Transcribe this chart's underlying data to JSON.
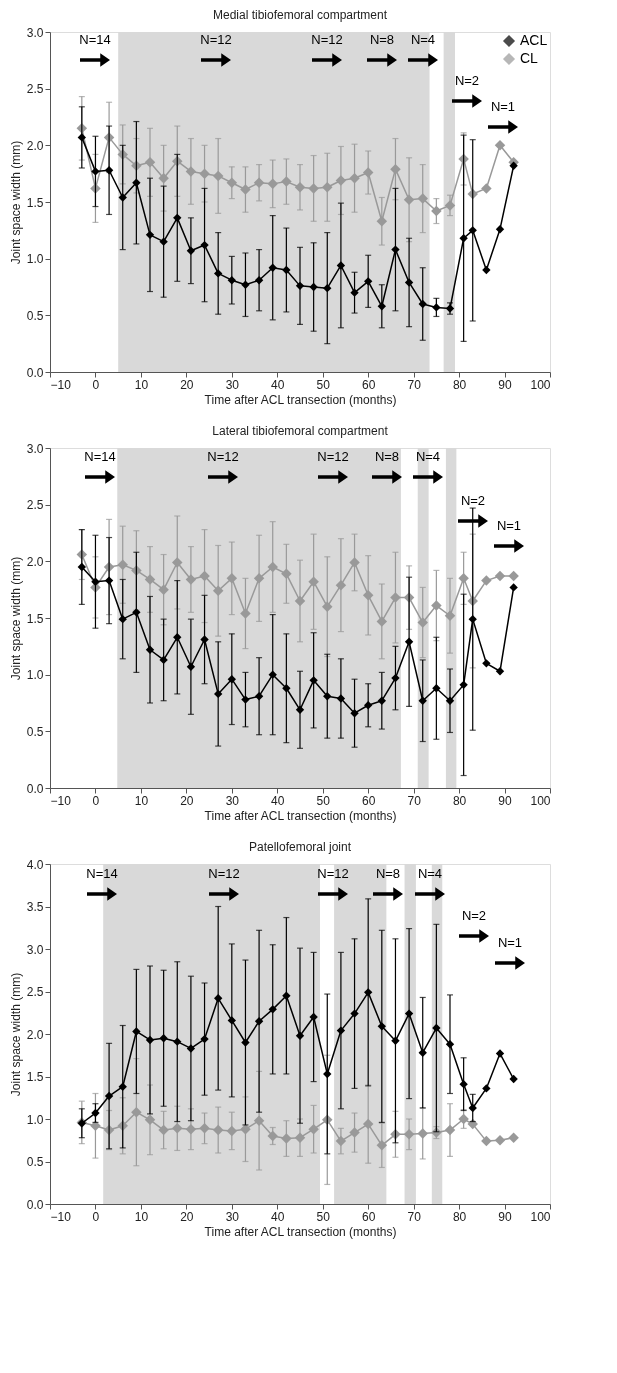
{
  "chart_data": [
    {
      "type": "line",
      "title": "Medial tibiofemoral compartment",
      "xlabel": "Time after ACL transection (months)",
      "ylabel": "Joint space width (mm)",
      "x": [
        -3,
        0,
        3,
        6,
        9,
        12,
        15,
        18,
        21,
        24,
        27,
        30,
        33,
        36,
        39,
        42,
        45,
        48,
        51,
        54,
        57,
        60,
        63,
        66,
        69,
        72,
        75,
        78,
        81,
        83,
        86,
        89,
        92
      ],
      "series": [
        {
          "name": "ACL",
          "color": "#000000",
          "values": [
            2.07,
            1.77,
            1.78,
            1.54,
            1.67,
            1.21,
            1.15,
            1.36,
            1.07,
            1.12,
            0.87,
            0.81,
            0.77,
            0.81,
            0.92,
            0.9,
            0.76,
            0.75,
            0.74,
            0.94,
            0.7,
            0.8,
            0.58,
            1.08,
            0.79,
            0.6,
            0.57,
            0.56,
            1.18,
            1.25,
            0.9,
            1.26,
            1.82
          ],
          "errors": [
            0.27,
            0.31,
            0.39,
            0.46,
            0.54,
            0.5,
            0.49,
            0.56,
            0.29,
            0.5,
            0.36,
            0.21,
            0.28,
            0.27,
            0.46,
            0.37,
            0.34,
            0.39,
            0.49,
            0.55,
            0.18,
            0.23,
            0.19,
            0.54,
            0.39,
            0.32,
            0.08,
            0.05,
            0.91,
            0.8,
            null,
            null,
            null
          ]
        },
        {
          "name": "CL",
          "color": "#999999",
          "values": [
            2.15,
            1.62,
            2.07,
            1.92,
            1.82,
            1.85,
            1.71,
            1.86,
            1.77,
            1.75,
            1.73,
            1.67,
            1.61,
            1.67,
            1.66,
            1.68,
            1.63,
            1.62,
            1.63,
            1.69,
            1.71,
            1.76,
            1.33,
            1.79,
            1.52,
            1.53,
            1.42,
            1.47,
            1.88,
            1.57,
            1.62,
            2.0,
            1.85
          ],
          "errors": [
            0.28,
            0.3,
            0.31,
            0.26,
            0.24,
            0.3,
            0.29,
            0.31,
            0.29,
            0.25,
            0.33,
            0.14,
            0.2,
            0.16,
            0.21,
            0.2,
            0.2,
            0.29,
            0.3,
            0.3,
            0.3,
            0.19,
            0.21,
            0.27,
            0.37,
            0.3,
            0.11,
            0.09,
            0.23,
            null,
            null,
            null,
            null
          ]
        }
      ],
      "xlim": [
        -10,
        100
      ],
      "xticks": [
        -10,
        0,
        10,
        20,
        30,
        40,
        50,
        60,
        70,
        80,
        90,
        100
      ],
      "ylim": [
        0,
        3
      ],
      "yticks": [
        {
          "value": 0,
          "label": "0.0"
        },
        {
          "value": 0.5,
          "label": "0.5"
        },
        {
          "value": 1,
          "label": "1.0"
        },
        {
          "value": 1.5,
          "label": "1.5"
        },
        {
          "value": 2,
          "label": "2.0"
        },
        {
          "value": 2.5,
          "label": "2.5"
        },
        {
          "value": 3,
          "label": "3.0"
        }
      ],
      "bands": [
        {
          "axis": "x",
          "from": 5,
          "to": 73.5,
          "color": "#d9d9d9"
        },
        {
          "axis": "x",
          "from": 76.6,
          "to": 79.1,
          "color": "#d9d9d9"
        }
      ],
      "annotations": [
        "N=14",
        "N=12",
        "N=12",
        "N=8",
        "N=4",
        "N=2",
        "N=1"
      ],
      "legend": "top right",
      "marker": "diamond",
      "line_style": "solid"
    },
    {
      "type": "line",
      "title": "Lateral tibiofemoral compartment",
      "xlabel": "Time after ACL transection (months)",
      "ylabel": "Joint space width (mm)",
      "x": [
        -3,
        0,
        3,
        6,
        9,
        12,
        15,
        18,
        21,
        24,
        27,
        30,
        33,
        36,
        39,
        42,
        45,
        48,
        51,
        54,
        57,
        60,
        63,
        66,
        69,
        72,
        75,
        78,
        81,
        83,
        86,
        89,
        92
      ],
      "series": [
        {
          "name": "ACL",
          "color": "#000000",
          "values": [
            1.95,
            1.82,
            1.83,
            1.49,
            1.55,
            1.22,
            1.13,
            1.33,
            1.07,
            1.31,
            0.83,
            0.96,
            0.78,
            0.81,
            1.0,
            0.88,
            0.69,
            0.95,
            0.81,
            0.79,
            0.66,
            0.73,
            0.77,
            0.97,
            1.29,
            0.77,
            0.88,
            0.77,
            0.91,
            1.49,
            1.1,
            1.03,
            1.77
          ],
          "errors": [
            0.33,
            0.41,
            0.38,
            0.35,
            0.53,
            0.47,
            0.36,
            0.5,
            0.42,
            0.39,
            0.46,
            0.4,
            0.24,
            0.34,
            0.53,
            0.48,
            0.34,
            0.42,
            0.37,
            0.35,
            0.3,
            0.19,
            0.25,
            0.28,
            0.57,
            0.36,
            0.45,
            0.28,
            0.8,
            0.98,
            null,
            null,
            null
          ]
        },
        {
          "name": "CL",
          "color": "#999999",
          "values": [
            2.06,
            1.77,
            1.95,
            1.97,
            1.92,
            1.84,
            1.75,
            1.99,
            1.84,
            1.87,
            1.74,
            1.85,
            1.54,
            1.85,
            1.95,
            1.89,
            1.65,
            1.82,
            1.6,
            1.79,
            1.99,
            1.7,
            1.47,
            1.68,
            1.68,
            1.46,
            1.61,
            1.52,
            1.85,
            1.65,
            1.83,
            1.87,
            1.87
          ],
          "errors": [
            0.22,
            0.27,
            0.42,
            0.34,
            0.35,
            0.29,
            0.31,
            0.41,
            0.29,
            0.41,
            0.4,
            0.32,
            0.31,
            0.38,
            0.4,
            0.26,
            0.36,
            0.42,
            0.44,
            0.41,
            0.25,
            0.35,
            0.33,
            0.4,
            0.28,
            0.31,
            0.31,
            0.33,
            0.23,
            0.59,
            null,
            null,
            null
          ]
        }
      ],
      "xlim": [
        -10,
        100
      ],
      "xticks": [
        -10,
        0,
        10,
        20,
        30,
        40,
        50,
        60,
        70,
        80,
        90,
        100
      ],
      "ylim": [
        0,
        3
      ],
      "yticks": [
        {
          "value": 0,
          "label": "0.0"
        },
        {
          "value": 0.5,
          "label": "0.5"
        },
        {
          "value": 1,
          "label": "1.0"
        },
        {
          "value": 1.5,
          "label": "1.5"
        },
        {
          "value": 2,
          "label": "2.0"
        },
        {
          "value": 2.5,
          "label": "2.5"
        },
        {
          "value": 3,
          "label": "3.0"
        }
      ],
      "bands": [
        {
          "axis": "x",
          "from": 4.8,
          "to": 67.2,
          "color": "#d9d9d9"
        },
        {
          "axis": "x",
          "from": 70.9,
          "to": 73.3,
          "color": "#d9d9d9"
        },
        {
          "axis": "x",
          "from": 77.1,
          "to": 79.4,
          "color": "#d9d9d9"
        }
      ],
      "annotations": [
        "N=14",
        "N=12",
        "N=12",
        "N=8",
        "N=4",
        "N=2",
        "N=1"
      ],
      "legend": "top right",
      "marker": "diamond",
      "line_style": "solid"
    },
    {
      "type": "line",
      "title": "Patellofemoral joint",
      "xlabel": "Time after ACL transection (months)",
      "ylabel": "Joint space width (mm)",
      "x": [
        -3,
        0,
        3,
        6,
        9,
        12,
        15,
        18,
        21,
        24,
        27,
        30,
        33,
        36,
        39,
        42,
        45,
        48,
        51,
        54,
        57,
        60,
        63,
        66,
        69,
        72,
        75,
        78,
        81,
        83,
        86,
        89,
        92
      ],
      "series": [
        {
          "name": "ACL",
          "color": "#000000",
          "values": [
            0.95,
            1.07,
            1.27,
            1.38,
            2.03,
            1.93,
            1.95,
            1.91,
            1.83,
            1.94,
            2.42,
            2.16,
            1.9,
            2.15,
            2.29,
            2.45,
            1.98,
            2.2,
            1.53,
            2.04,
            2.24,
            2.49,
            2.09,
            1.92,
            2.24,
            1.78,
            2.07,
            1.88,
            1.41,
            1.13,
            1.36,
            1.77,
            1.47
          ],
          "errors": [
            0.17,
            0.11,
            0.62,
            0.72,
            0.73,
            0.87,
            0.8,
            0.94,
            0.85,
            0.66,
            1.08,
            0.9,
            0.97,
            1.07,
            0.76,
            0.92,
            1.03,
            0.76,
            0.94,
            0.92,
            0.88,
            1.1,
            1.13,
            1.2,
            1.0,
            0.65,
            1.22,
            0.58,
            0.31,
            0.16,
            null,
            null,
            null
          ]
        },
        {
          "name": "CL",
          "color": "#999999",
          "values": [
            0.96,
            0.92,
            0.87,
            0.92,
            1.08,
            0.99,
            0.87,
            0.89,
            0.88,
            0.89,
            0.87,
            0.86,
            0.88,
            0.98,
            0.8,
            0.77,
            0.78,
            0.88,
            0.99,
            0.74,
            0.84,
            0.94,
            0.69,
            0.82,
            0.82,
            0.83,
            0.84,
            0.87,
            1.0,
            0.94,
            0.74,
            0.75,
            0.78
          ],
          "errors": [
            0.25,
            0.38,
            0.23,
            0.33,
            0.63,
            0.41,
            0.22,
            0.26,
            0.24,
            0.18,
            0.27,
            0.22,
            0.38,
            0.58,
            0.1,
            0.21,
            0.22,
            0.28,
            0.76,
            0.15,
            0.23,
            0.46,
            0.26,
            0.27,
            0.18,
            0.3,
            0.07,
            0.31,
            0.11,
            null,
            null,
            null,
            null
          ]
        }
      ],
      "xlim": [
        -10,
        100
      ],
      "xticks": [
        -10,
        0,
        10,
        20,
        30,
        40,
        50,
        60,
        70,
        80,
        90,
        100
      ],
      "ylim": [
        0,
        4
      ],
      "yticks": [
        {
          "value": 0,
          "label": "0.0"
        },
        {
          "value": 0.5,
          "label": "0.5"
        },
        {
          "value": 1,
          "label": "1.0"
        },
        {
          "value": 1.5,
          "label": "1.5"
        },
        {
          "value": 2,
          "label": "2.0"
        },
        {
          "value": 2.5,
          "label": "2.5"
        },
        {
          "value": 3,
          "label": "3.0"
        },
        {
          "value": 3.5,
          "label": "3.5"
        },
        {
          "value": 4,
          "label": "4.0"
        }
      ],
      "bands": [
        {
          "axis": "x",
          "from": 1.7,
          "to": 49.4,
          "color": "#d9d9d9"
        },
        {
          "axis": "x",
          "from": 52.5,
          "to": 64,
          "color": "#d9d9d9"
        },
        {
          "axis": "x",
          "from": 68,
          "to": 70.5,
          "color": "#d9d9d9"
        },
        {
          "axis": "x",
          "from": 74,
          "to": 76.3,
          "color": "#d9d9d9"
        }
      ],
      "annotations": [
        "N=14",
        "N=12",
        "N=12",
        "N=8",
        "N=4",
        "N=2",
        "N=1"
      ],
      "legend": "top right",
      "marker": "diamond",
      "line_style": "solid"
    }
  ]
}
